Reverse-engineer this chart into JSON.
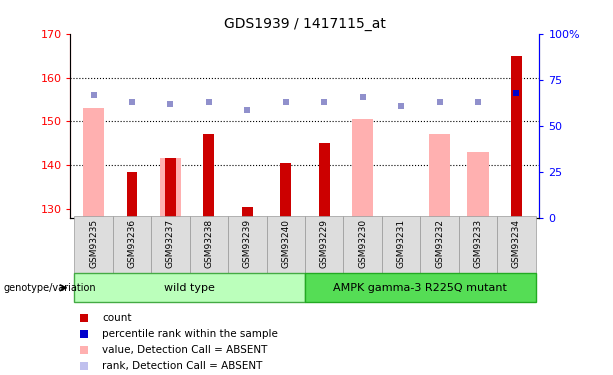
{
  "title": "GDS1939 / 1417115_at",
  "samples": [
    "GSM93235",
    "GSM93236",
    "GSM93237",
    "GSM93238",
    "GSM93239",
    "GSM93240",
    "GSM93229",
    "GSM93230",
    "GSM93231",
    "GSM93232",
    "GSM93233",
    "GSM93234"
  ],
  "count_values": [
    null,
    138.5,
    141.5,
    147.0,
    130.5,
    140.5,
    145.0,
    null,
    null,
    null,
    null,
    165.0
  ],
  "value_absent": [
    153.0,
    null,
    141.5,
    null,
    null,
    null,
    null,
    150.5,
    null,
    147.0,
    143.0,
    null
  ],
  "rank_absent_y": [
    156.0,
    154.5,
    154.0,
    154.5,
    152.5,
    154.5,
    154.5,
    155.5,
    153.5,
    154.5,
    154.5,
    156.5
  ],
  "rank_absent_is_dark": [
    true,
    false,
    false,
    false,
    false,
    false,
    false,
    false,
    false,
    false,
    false,
    true
  ],
  "percentile_y_left": [
    156.0,
    154.5,
    154.0,
    154.5,
    152.5,
    154.5,
    154.5,
    155.5,
    153.5,
    154.5,
    154.5,
    156.5
  ],
  "percentile_is_dark": [
    false,
    false,
    false,
    false,
    false,
    false,
    false,
    false,
    false,
    false,
    false,
    true
  ],
  "ylim_left": [
    128,
    170
  ],
  "ylim_right": [
    0,
    100
  ],
  "yticks_left": [
    130,
    140,
    150,
    160,
    170
  ],
  "yticks_right": [
    0,
    25,
    50,
    75,
    100
  ],
  "ytick_labels_right": [
    "0",
    "25",
    "50",
    "75",
    "100%"
  ],
  "color_count": "#cc0000",
  "color_value_absent": "#ffb0b0",
  "color_rank_absent_light": "#c0c0ee",
  "color_rank_absent_dark": "#8080cc",
  "color_percentile_light": "#9090cc",
  "color_percentile_dark": "#0000cc",
  "wt_color": "#bbffbb",
  "mut_color": "#55dd55",
  "wt_edge": "#44aa44",
  "mut_edge": "#22aa22",
  "legend_labels": [
    "count",
    "percentile rank within the sample",
    "value, Detection Call = ABSENT",
    "rank, Detection Call = ABSENT"
  ],
  "legend_colors": [
    "#cc0000",
    "#0000cc",
    "#ffb0b0",
    "#c0c0ee"
  ]
}
